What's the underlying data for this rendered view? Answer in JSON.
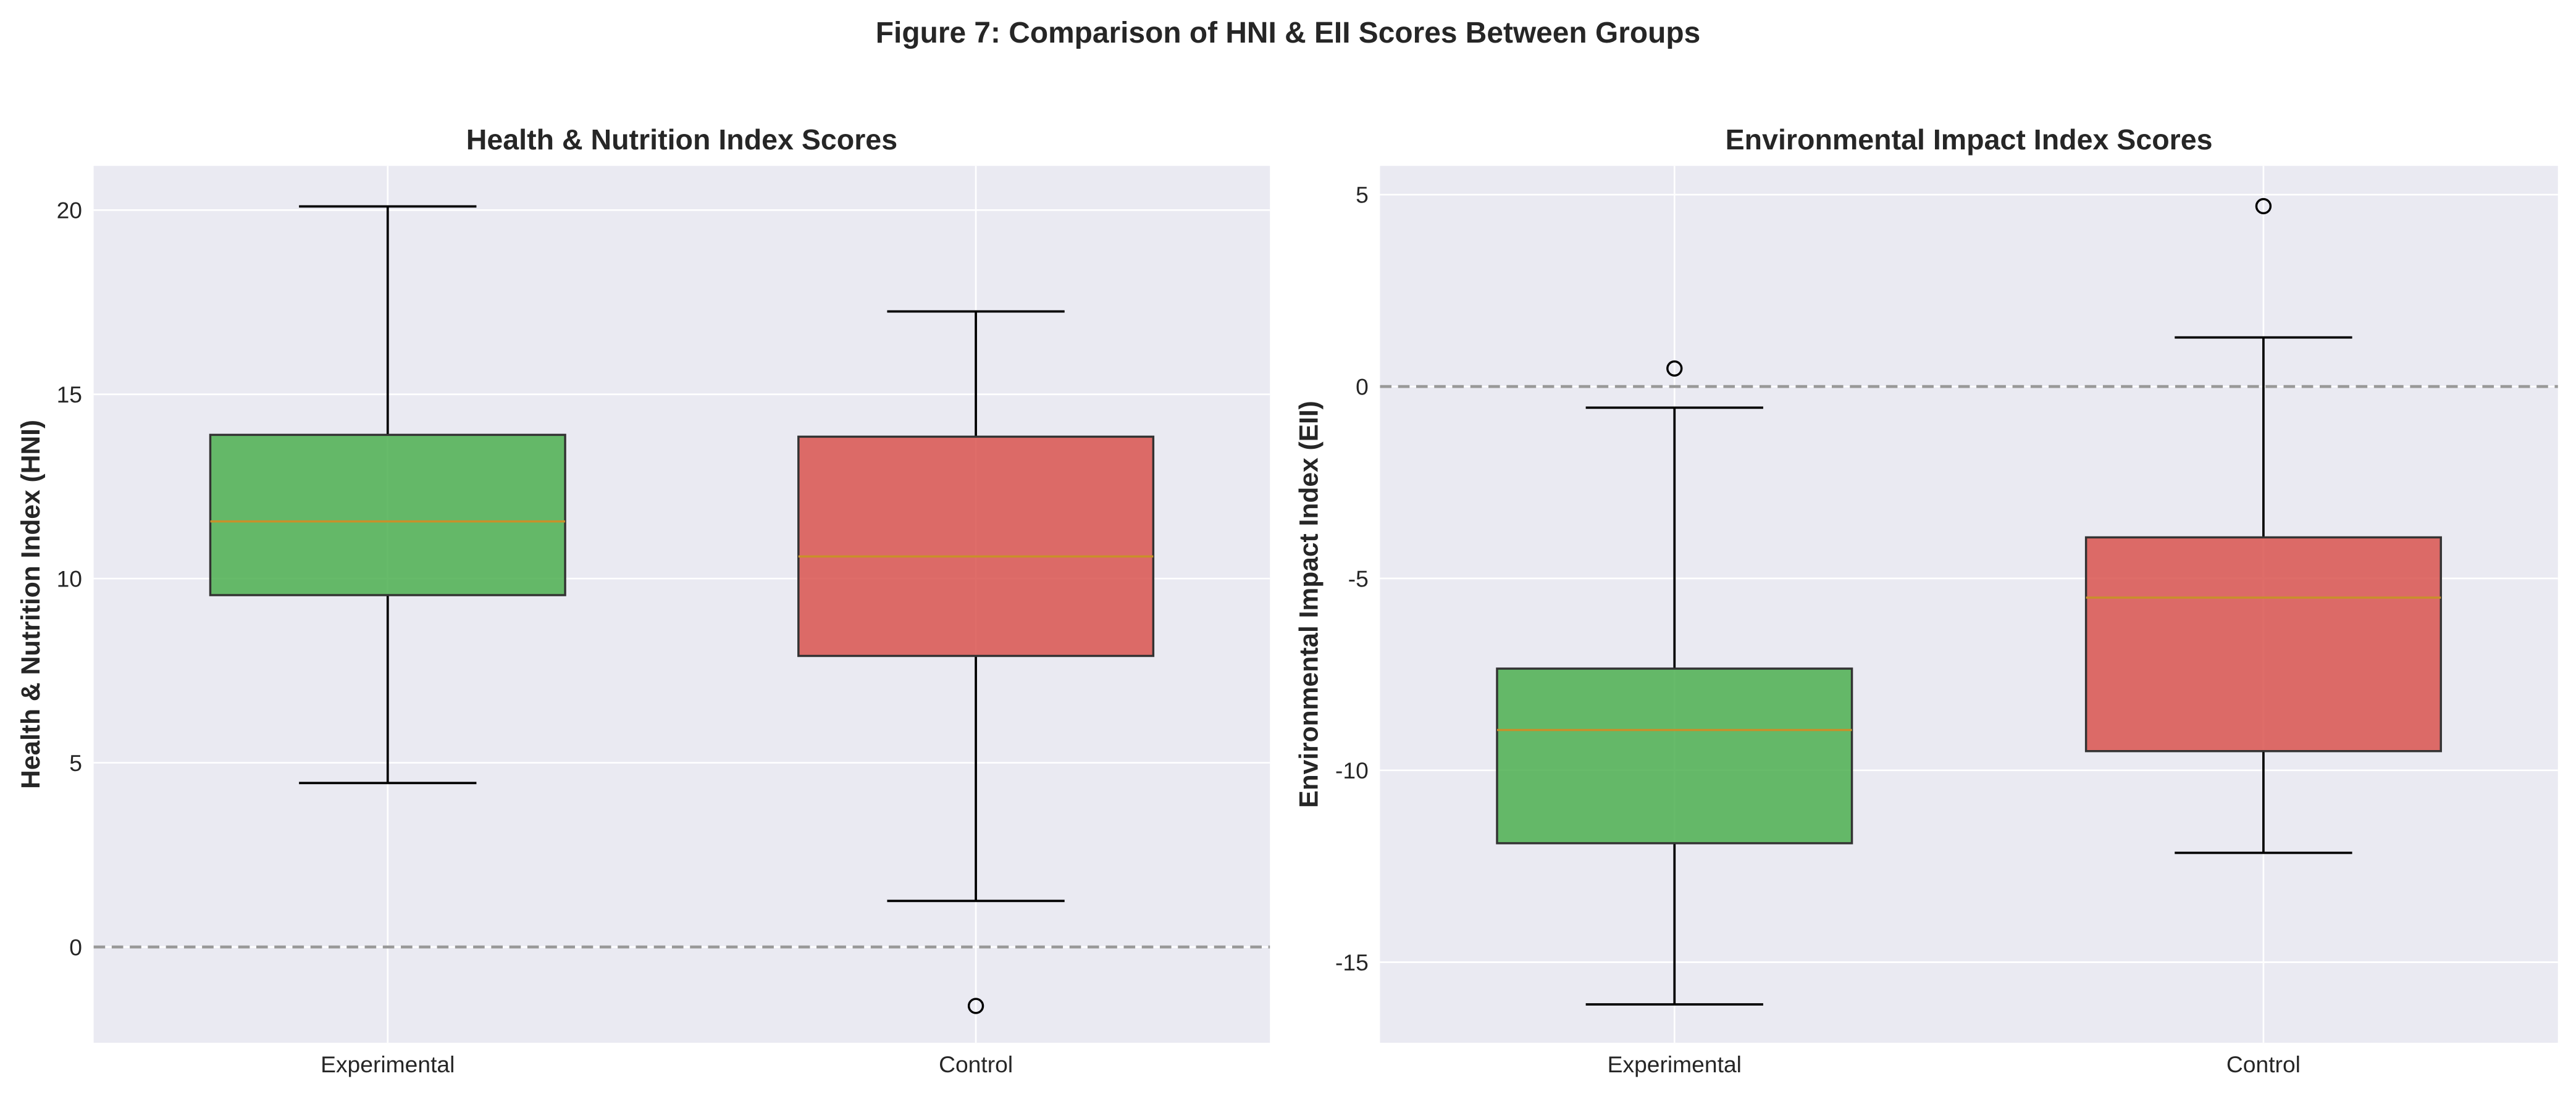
{
  "figure_title": "Figure 7: Comparison of HNI & EII Scores Between Groups",
  "colors": {
    "experimental": "#4caf50",
    "control": "#d9534f",
    "median": "#c8902a",
    "background": "#eaeaf2",
    "reference_line": "#999999"
  },
  "chart_data": [
    {
      "type": "box",
      "title": "Health & Nutrition Index Scores",
      "xlabel": "",
      "ylabel": "Health & Nutrition Index (HNI)",
      "categories": [
        "Experimental",
        "Control"
      ],
      "ylim": [
        -2.6,
        21.2
      ],
      "yticks": [
        0,
        5,
        10,
        15,
        20
      ],
      "ytick_labels": [
        "0",
        "5",
        "10",
        "15",
        "20"
      ],
      "reference_line": 0,
      "grid": true,
      "series": [
        {
          "name": "Experimental",
          "whisker_low": 4.45,
          "q1": 9.55,
          "median": 11.55,
          "q3": 13.9,
          "whisker_high": 20.1,
          "outliers": []
        },
        {
          "name": "Control",
          "whisker_low": 1.25,
          "q1": 7.9,
          "median": 10.6,
          "q3": 13.85,
          "whisker_high": 17.25,
          "outliers": [
            -1.6
          ]
        }
      ]
    },
    {
      "type": "box",
      "title": "Environmental Impact Index Scores",
      "xlabel": "",
      "ylabel": "Environmental Impact Index (EII)",
      "categories": [
        "Experimental",
        "Control"
      ],
      "ylim": [
        -17.1,
        5.75
      ],
      "yticks": [
        -15,
        -10,
        -5,
        0,
        5
      ],
      "ytick_labels": [
        "-15",
        "-10",
        "-5",
        "0",
        "5"
      ],
      "reference_line": 0,
      "grid": true,
      "series": [
        {
          "name": "Experimental",
          "whisker_low": -16.1,
          "q1": -11.9,
          "median": -8.95,
          "q3": -7.35,
          "whisker_high": -0.55,
          "outliers": [
            0.47
          ]
        },
        {
          "name": "Control",
          "whisker_low": -12.15,
          "q1": -9.5,
          "median": -5.5,
          "q3": -3.93,
          "whisker_high": 1.28,
          "outliers": [
            4.7
          ]
        }
      ]
    }
  ]
}
